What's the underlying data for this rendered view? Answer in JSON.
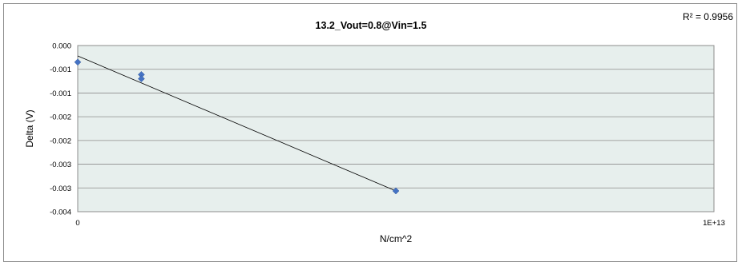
{
  "chart_data": {
    "type": "scatter",
    "title": "13.2_Vout=0.8@Vin=1.5",
    "xlabel": "N/cm^2",
    "ylabel": "Delta (V)",
    "xlim": [
      0,
      10000000000000
    ],
    "ylim": [
      -0.004,
      0.0
    ],
    "x_tick_labels": [
      "0",
      "1E+13"
    ],
    "y_tick_labels": [
      "0.000",
      "-0.001",
      "-0.001",
      "-0.002",
      "-0.002",
      "-0.003",
      "-0.003",
      "-0.004"
    ],
    "grid": true,
    "plot_background": "#e7efed",
    "series": [
      {
        "color": "#4472c4",
        "marker": "diamond",
        "points": [
          {
            "x": 0,
            "y": -0.0004
          },
          {
            "x": 1000000000000,
            "y": -0.0007
          },
          {
            "x": 1000000000000,
            "y": -0.0008
          },
          {
            "x": 5000000000000,
            "y": -0.0035
          }
        ]
      }
    ],
    "trendline": {
      "type": "linear",
      "x": [
        0,
        5000000000000
      ],
      "y": [
        -0.00025,
        -0.0035
      ],
      "color": "#000000",
      "r2_label": "R² = 0.9956"
    }
  }
}
